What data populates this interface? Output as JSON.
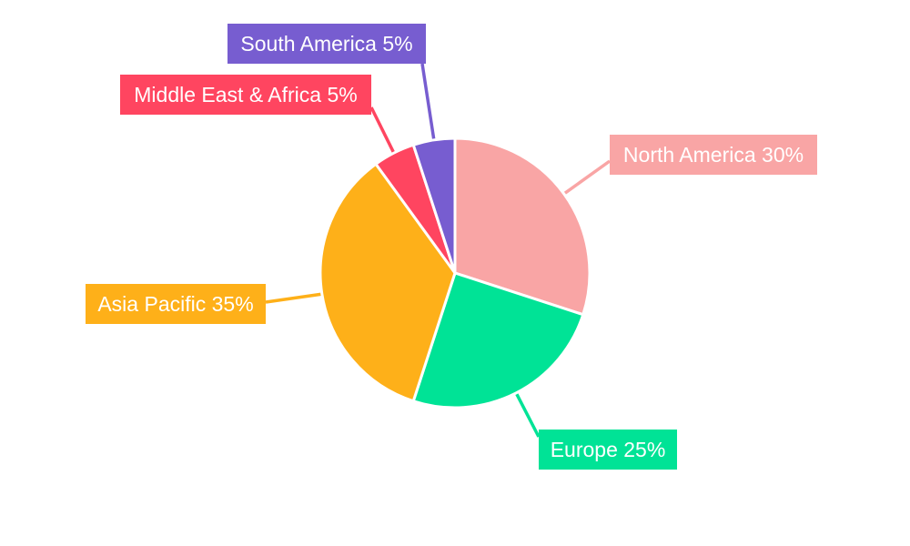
{
  "chart_data": {
    "type": "pie",
    "title": "",
    "categories": [
      "North America",
      "Europe",
      "Asia Pacific",
      "Middle East & Africa",
      "South America"
    ],
    "values": [
      30,
      25,
      35,
      5,
      5
    ],
    "labels": [
      "North America 30%",
      "Europe 25%",
      "Asia Pacific 35%",
      "Middle East & Africa 5%",
      "South America 5%"
    ],
    "colors": [
      "#f9a5a5",
      "#00e396",
      "#feb019",
      "#ff4560",
      "#775dd0"
    ],
    "start_angle": "top, clockwise",
    "legend": "none"
  }
}
